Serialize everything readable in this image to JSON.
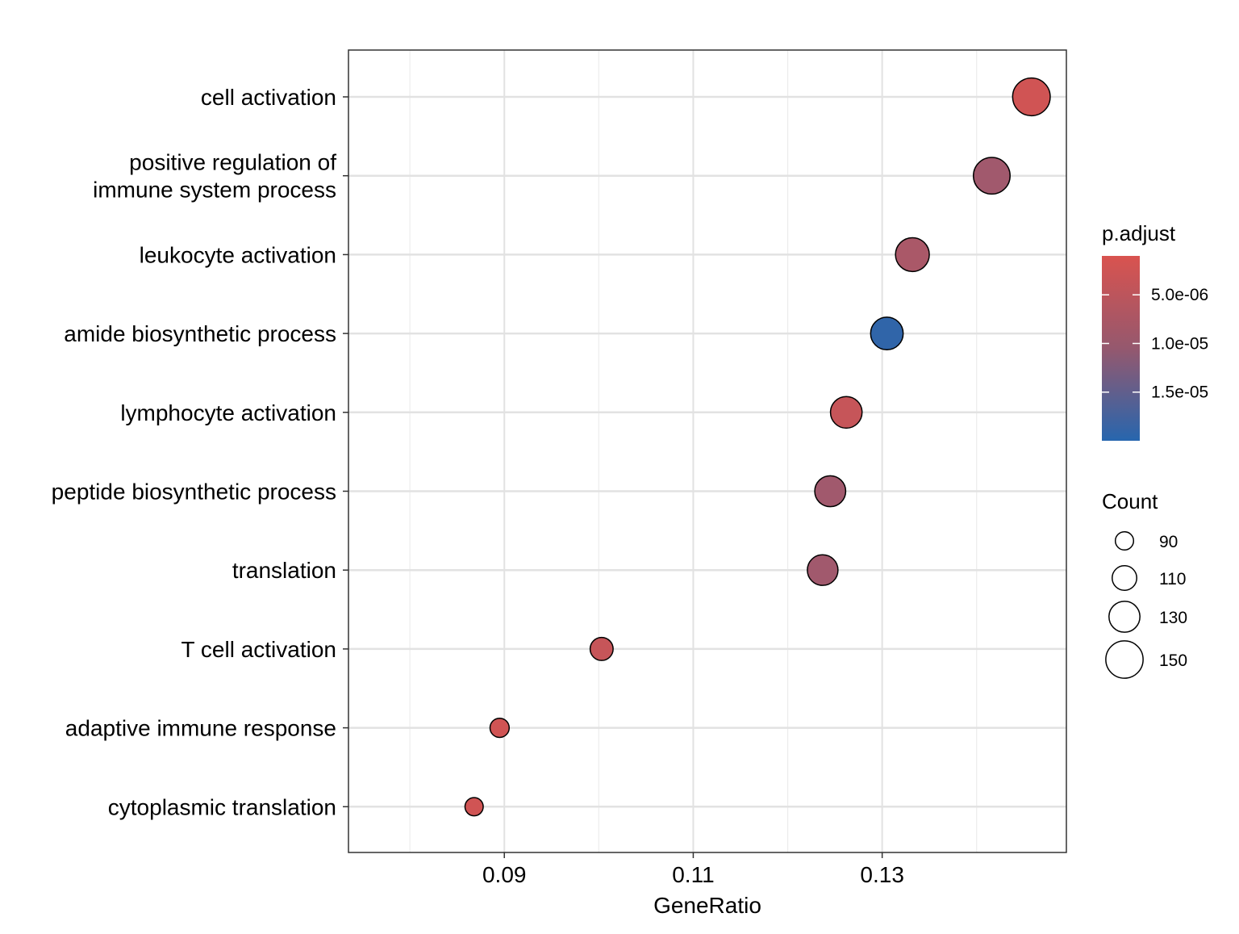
{
  "chart_data": {
    "type": "scatter",
    "title": "",
    "xlabel": "GeneRatio",
    "ylabel": "",
    "xlim": [
      0.0735,
      0.1495
    ],
    "x_ticks": [
      0.09,
      0.11,
      0.13
    ],
    "x_tick_labels": [
      "0.09",
      "0.11",
      "0.13"
    ],
    "grid": true,
    "legend_position": "right",
    "categories": [
      "cell activation",
      "positive regulation of\nimmune system process",
      "leukocyte activation",
      "amide biosynthetic process",
      "lymphocyte activation",
      "peptide biosynthetic process",
      "translation",
      "T cell activation",
      "adaptive immune response",
      "cytoplasmic translation"
    ],
    "points": [
      {
        "term": "cell activation",
        "gene_ratio": 0.1458,
        "p_adjust": 2e-06,
        "count": 151
      },
      {
        "term": "positive regulation of\nimmune system process",
        "gene_ratio": 0.1416,
        "p_adjust": 7e-06,
        "count": 148
      },
      {
        "term": "leukocyte activation",
        "gene_ratio": 0.1332,
        "p_adjust": 6e-06,
        "count": 139
      },
      {
        "term": "amide biosynthetic process",
        "gene_ratio": 0.1305,
        "p_adjust": 1.9e-05,
        "count": 135
      },
      {
        "term": "lymphocyte activation",
        "gene_ratio": 0.1262,
        "p_adjust": 3e-06,
        "count": 132
      },
      {
        "term": "peptide biosynthetic process",
        "gene_ratio": 0.1245,
        "p_adjust": 7e-06,
        "count": 130
      },
      {
        "term": "translation",
        "gene_ratio": 0.1237,
        "p_adjust": 7e-06,
        "count": 129
      },
      {
        "term": "T cell activation",
        "gene_ratio": 0.1003,
        "p_adjust": 3e-06,
        "count": 105
      },
      {
        "term": "adaptive immune response",
        "gene_ratio": 0.0895,
        "p_adjust": 2e-06,
        "count": 93
      },
      {
        "term": "cytoplasmic translation",
        "gene_ratio": 0.0868,
        "p_adjust": 2e-06,
        "count": 90
      }
    ],
    "color_legend": {
      "title": "p.adjust",
      "low_color": "#d9534f",
      "high_color": "#2766ae",
      "range": [
        1e-06,
        2e-05
      ],
      "ticks": [
        5e-06,
        1e-05,
        1.5e-05
      ],
      "tick_labels": [
        "5.0e-06",
        "1.0e-05",
        "1.5e-05"
      ]
    },
    "size_legend": {
      "title": "Count",
      "values": [
        90,
        110,
        130,
        150
      ],
      "labels": [
        "90",
        "110",
        "130",
        "150"
      ]
    }
  }
}
